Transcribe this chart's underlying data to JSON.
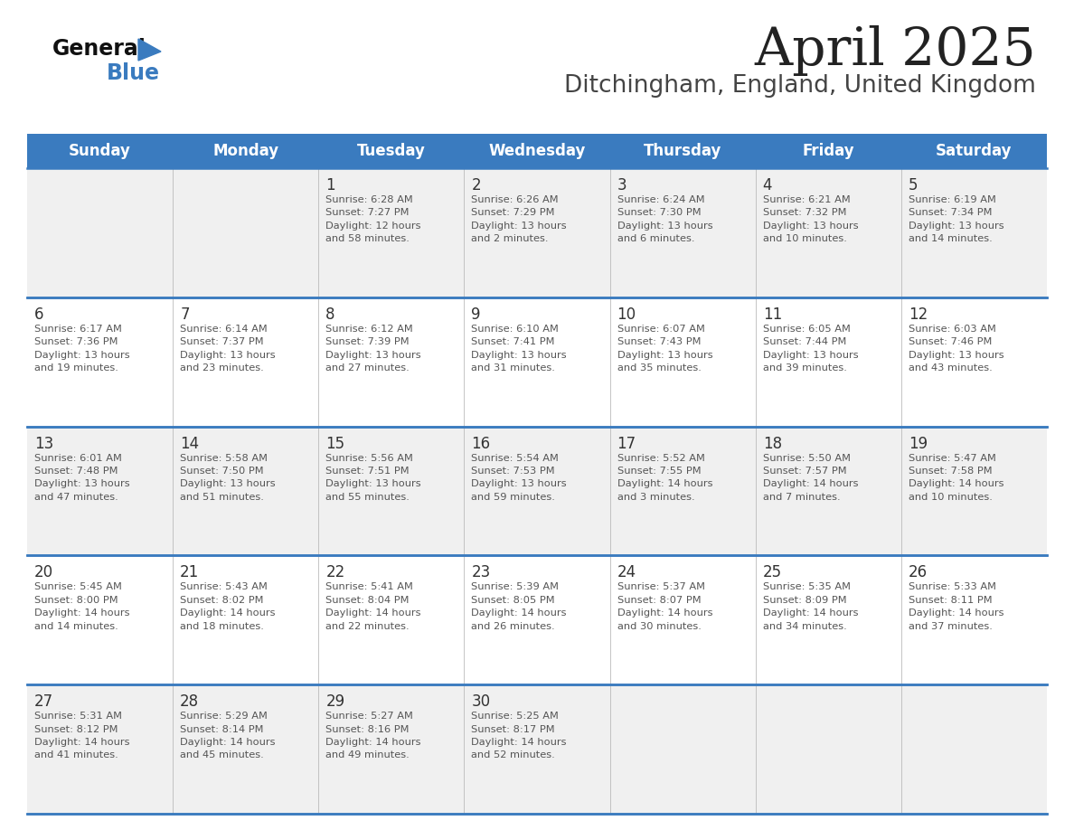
{
  "title": "April 2025",
  "subtitle": "Ditchingham, England, United Kingdom",
  "days_of_week": [
    "Sunday",
    "Monday",
    "Tuesday",
    "Wednesday",
    "Thursday",
    "Friday",
    "Saturday"
  ],
  "header_bg": "#3a7bbf",
  "header_text": "#ffffff",
  "row_bg_odd": "#f0f0f0",
  "row_bg_even": "#ffffff",
  "row_separator": "#3a7bbf",
  "day_number_color": "#333333",
  "text_color": "#555555",
  "title_color": "#222222",
  "subtitle_color": "#444444",
  "logo_triangle_color": "#3a7bbf",
  "calendar_data": [
    [
      {
        "day": null,
        "info": ""
      },
      {
        "day": null,
        "info": ""
      },
      {
        "day": 1,
        "info": "Sunrise: 6:28 AM\nSunset: 7:27 PM\nDaylight: 12 hours\nand 58 minutes."
      },
      {
        "day": 2,
        "info": "Sunrise: 6:26 AM\nSunset: 7:29 PM\nDaylight: 13 hours\nand 2 minutes."
      },
      {
        "day": 3,
        "info": "Sunrise: 6:24 AM\nSunset: 7:30 PM\nDaylight: 13 hours\nand 6 minutes."
      },
      {
        "day": 4,
        "info": "Sunrise: 6:21 AM\nSunset: 7:32 PM\nDaylight: 13 hours\nand 10 minutes."
      },
      {
        "day": 5,
        "info": "Sunrise: 6:19 AM\nSunset: 7:34 PM\nDaylight: 13 hours\nand 14 minutes."
      }
    ],
    [
      {
        "day": 6,
        "info": "Sunrise: 6:17 AM\nSunset: 7:36 PM\nDaylight: 13 hours\nand 19 minutes."
      },
      {
        "day": 7,
        "info": "Sunrise: 6:14 AM\nSunset: 7:37 PM\nDaylight: 13 hours\nand 23 minutes."
      },
      {
        "day": 8,
        "info": "Sunrise: 6:12 AM\nSunset: 7:39 PM\nDaylight: 13 hours\nand 27 minutes."
      },
      {
        "day": 9,
        "info": "Sunrise: 6:10 AM\nSunset: 7:41 PM\nDaylight: 13 hours\nand 31 minutes."
      },
      {
        "day": 10,
        "info": "Sunrise: 6:07 AM\nSunset: 7:43 PM\nDaylight: 13 hours\nand 35 minutes."
      },
      {
        "day": 11,
        "info": "Sunrise: 6:05 AM\nSunset: 7:44 PM\nDaylight: 13 hours\nand 39 minutes."
      },
      {
        "day": 12,
        "info": "Sunrise: 6:03 AM\nSunset: 7:46 PM\nDaylight: 13 hours\nand 43 minutes."
      }
    ],
    [
      {
        "day": 13,
        "info": "Sunrise: 6:01 AM\nSunset: 7:48 PM\nDaylight: 13 hours\nand 47 minutes."
      },
      {
        "day": 14,
        "info": "Sunrise: 5:58 AM\nSunset: 7:50 PM\nDaylight: 13 hours\nand 51 minutes."
      },
      {
        "day": 15,
        "info": "Sunrise: 5:56 AM\nSunset: 7:51 PM\nDaylight: 13 hours\nand 55 minutes."
      },
      {
        "day": 16,
        "info": "Sunrise: 5:54 AM\nSunset: 7:53 PM\nDaylight: 13 hours\nand 59 minutes."
      },
      {
        "day": 17,
        "info": "Sunrise: 5:52 AM\nSunset: 7:55 PM\nDaylight: 14 hours\nand 3 minutes."
      },
      {
        "day": 18,
        "info": "Sunrise: 5:50 AM\nSunset: 7:57 PM\nDaylight: 14 hours\nand 7 minutes."
      },
      {
        "day": 19,
        "info": "Sunrise: 5:47 AM\nSunset: 7:58 PM\nDaylight: 14 hours\nand 10 minutes."
      }
    ],
    [
      {
        "day": 20,
        "info": "Sunrise: 5:45 AM\nSunset: 8:00 PM\nDaylight: 14 hours\nand 14 minutes."
      },
      {
        "day": 21,
        "info": "Sunrise: 5:43 AM\nSunset: 8:02 PM\nDaylight: 14 hours\nand 18 minutes."
      },
      {
        "day": 22,
        "info": "Sunrise: 5:41 AM\nSunset: 8:04 PM\nDaylight: 14 hours\nand 22 minutes."
      },
      {
        "day": 23,
        "info": "Sunrise: 5:39 AM\nSunset: 8:05 PM\nDaylight: 14 hours\nand 26 minutes."
      },
      {
        "day": 24,
        "info": "Sunrise: 5:37 AM\nSunset: 8:07 PM\nDaylight: 14 hours\nand 30 minutes."
      },
      {
        "day": 25,
        "info": "Sunrise: 5:35 AM\nSunset: 8:09 PM\nDaylight: 14 hours\nand 34 minutes."
      },
      {
        "day": 26,
        "info": "Sunrise: 5:33 AM\nSunset: 8:11 PM\nDaylight: 14 hours\nand 37 minutes."
      }
    ],
    [
      {
        "day": 27,
        "info": "Sunrise: 5:31 AM\nSunset: 8:12 PM\nDaylight: 14 hours\nand 41 minutes."
      },
      {
        "day": 28,
        "info": "Sunrise: 5:29 AM\nSunset: 8:14 PM\nDaylight: 14 hours\nand 45 minutes."
      },
      {
        "day": 29,
        "info": "Sunrise: 5:27 AM\nSunset: 8:16 PM\nDaylight: 14 hours\nand 49 minutes."
      },
      {
        "day": 30,
        "info": "Sunrise: 5:25 AM\nSunset: 8:17 PM\nDaylight: 14 hours\nand 52 minutes."
      },
      {
        "day": null,
        "info": ""
      },
      {
        "day": null,
        "info": ""
      },
      {
        "day": null,
        "info": ""
      }
    ]
  ]
}
